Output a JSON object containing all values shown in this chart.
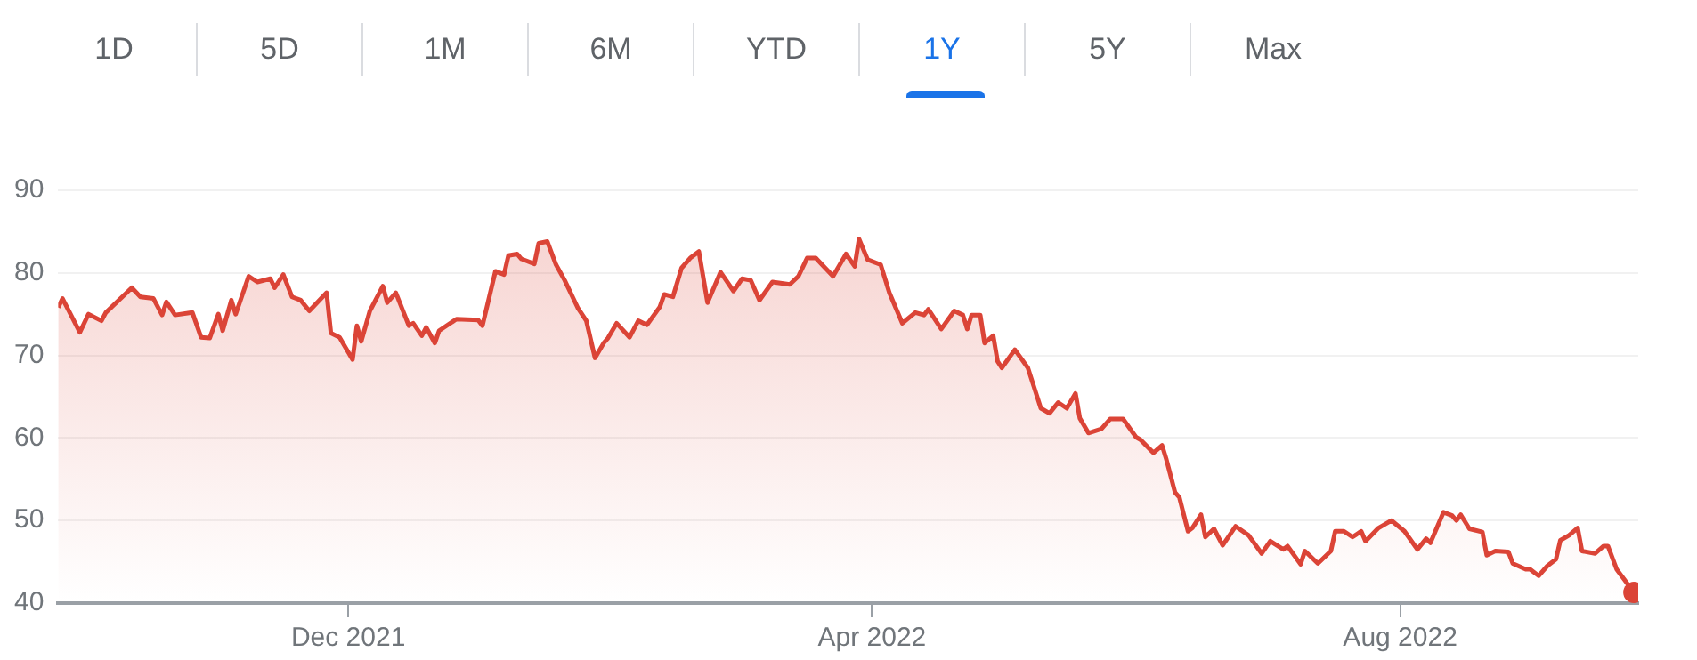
{
  "chart_data": {
    "type": "area",
    "annotations": [
      "1D",
      "5D",
      "1M",
      "6M",
      "YTD",
      "1Y",
      "5Y",
      "Max"
    ],
    "x": [
      "2021-09-25",
      "2021-09-26",
      "2021-09-30",
      "2021-10-02",
      "2021-10-05",
      "2021-10-06",
      "2021-10-12",
      "2021-10-14",
      "2021-10-17",
      "2021-10-19",
      "2021-10-20",
      "2021-10-22",
      "2021-10-26",
      "2021-10-28",
      "2021-10-30",
      "2021-11-01",
      "2021-11-02",
      "2021-11-04",
      "2021-11-05",
      "2021-11-08",
      "2021-11-10",
      "2021-11-13",
      "2021-11-14",
      "2021-11-16",
      "2021-11-18",
      "2021-11-20",
      "2021-11-22",
      "2021-11-26",
      "2021-11-27",
      "2021-11-29",
      "2021-12-02",
      "2021-12-03",
      "2021-12-04",
      "2021-12-06",
      "2021-12-09",
      "2021-12-10",
      "2021-12-12",
      "2021-12-15",
      "2021-12-16",
      "2021-12-18",
      "2021-12-19",
      "2021-12-21",
      "2021-12-22",
      "2021-12-26",
      "2021-12-31",
      "2022-01-01",
      "2022-01-04",
      "2022-01-06",
      "2022-01-07",
      "2022-01-09",
      "2022-01-10",
      "2022-01-13",
      "2022-01-14",
      "2022-01-16",
      "2022-01-18",
      "2022-01-20",
      "2022-01-23",
      "2022-01-25",
      "2022-01-27",
      "2022-01-29",
      "2022-01-30",
      "2022-02-01",
      "2022-02-04",
      "2022-02-06",
      "2022-02-08",
      "2022-02-11",
      "2022-02-12",
      "2022-02-14",
      "2022-02-16",
      "2022-02-18",
      "2022-02-20",
      "2022-02-22",
      "2022-02-25",
      "2022-02-28",
      "2022-03-02",
      "2022-03-04",
      "2022-03-06",
      "2022-03-09",
      "2022-03-13",
      "2022-03-15",
      "2022-03-17",
      "2022-03-19",
      "2022-03-23",
      "2022-03-26",
      "2022-03-28",
      "2022-03-29",
      "2022-03-31",
      "2022-04-03",
      "2022-04-05",
      "2022-04-08",
      "2022-04-11",
      "2022-04-13",
      "2022-04-14",
      "2022-04-17",
      "2022-04-20",
      "2022-04-22",
      "2022-04-23",
      "2022-04-24",
      "2022-04-26",
      "2022-04-27",
      "2022-04-29",
      "2022-04-30",
      "2022-05-01",
      "2022-05-04",
      "2022-05-07",
      "2022-05-10",
      "2022-05-12",
      "2022-05-14",
      "2022-05-16",
      "2022-05-18",
      "2022-05-19",
      "2022-05-21",
      "2022-05-24",
      "2022-05-26",
      "2022-05-29",
      "2022-06-01",
      "2022-06-02",
      "2022-06-05",
      "2022-06-07",
      "2022-06-08",
      "2022-06-10",
      "2022-06-11",
      "2022-06-13",
      "2022-06-14",
      "2022-06-16",
      "2022-06-17",
      "2022-06-19",
      "2022-06-21",
      "2022-06-24",
      "2022-06-27",
      "2022-06-30",
      "2022-07-02",
      "2022-07-05",
      "2022-07-06",
      "2022-07-09",
      "2022-07-10",
      "2022-07-13",
      "2022-07-16",
      "2022-07-17",
      "2022-07-19",
      "2022-07-21",
      "2022-07-23",
      "2022-07-24",
      "2022-07-27",
      "2022-07-30",
      "2022-08-02",
      "2022-08-05",
      "2022-08-07",
      "2022-08-08",
      "2022-08-11",
      "2022-08-13",
      "2022-08-14",
      "2022-08-15",
      "2022-08-17",
      "2022-08-20",
      "2022-08-21",
      "2022-08-23",
      "2022-08-26",
      "2022-08-27",
      "2022-08-30",
      "2022-08-31",
      "2022-09-02",
      "2022-09-04",
      "2022-09-06",
      "2022-09-07",
      "2022-09-09",
      "2022-09-11",
      "2022-09-12",
      "2022-09-15",
      "2022-09-17",
      "2022-09-18",
      "2022-09-20",
      "2022-09-24"
    ],
    "series": [
      {
        "color": "#db4437",
        "values": [
          75.8,
          76.9,
          72.8,
          75.0,
          74.2,
          75.2,
          78.2,
          77.1,
          76.9,
          74.9,
          76.5,
          74.9,
          75.2,
          72.2,
          72.1,
          75.0,
          73.0,
          76.7,
          75.0,
          79.6,
          78.9,
          79.3,
          78.2,
          79.8,
          77.1,
          76.7,
          75.4,
          77.6,
          72.7,
          72.2,
          69.5,
          73.6,
          71.7,
          75.4,
          78.4,
          76.4,
          77.6,
          73.6,
          73.9,
          72.4,
          73.4,
          71.5,
          73.0,
          74.4,
          74.3,
          73.6,
          80.2,
          79.8,
          82.1,
          82.3,
          81.7,
          81.1,
          83.6,
          83.8,
          81.0,
          79.1,
          75.8,
          74.2,
          69.7,
          71.5,
          72.1,
          73.9,
          72.2,
          74.2,
          73.7,
          75.9,
          77.4,
          77.1,
          80.6,
          81.8,
          82.6,
          76.4,
          80.1,
          77.8,
          79.3,
          79.1,
          76.7,
          78.9,
          78.6,
          79.6,
          81.8,
          81.8,
          79.6,
          82.3,
          80.8,
          84.1,
          81.6,
          81.0,
          77.6,
          73.9,
          75.2,
          74.9,
          75.6,
          73.2,
          75.4,
          74.9,
          73.2,
          74.9,
          74.9,
          71.5,
          72.4,
          69.3,
          68.5,
          70.7,
          68.5,
          63.6,
          63.0,
          64.3,
          63.6,
          65.4,
          62.4,
          60.6,
          61.1,
          62.3,
          62.3,
          60.1,
          59.8,
          58.2,
          59.1,
          57.4,
          53.4,
          52.8,
          48.7,
          49.1,
          50.7,
          48.0,
          49.0,
          47.0,
          49.3,
          48.2,
          46.0,
          47.5,
          46.5,
          46.9,
          44.7,
          46.3,
          44.8,
          46.3,
          48.7,
          48.7,
          48.0,
          48.7,
          47.5,
          49.1,
          50.0,
          48.7,
          46.5,
          47.8,
          47.3,
          51.0,
          50.6,
          50.0,
          50.7,
          49.0,
          48.6,
          45.8,
          46.3,
          46.2,
          44.8,
          44.1,
          44.1,
          43.3,
          44.5,
          45.3,
          47.6,
          48.2,
          49.1,
          46.3,
          46.0,
          46.9,
          46.9,
          44.1,
          41.3
        ]
      }
    ],
    "xlim": [
      "2021-09-25",
      "2022-09-25"
    ],
    "xticks": [
      {
        "value": "2021-12-01",
        "label": "Dec 2021"
      },
      {
        "value": "2022-04-01",
        "label": "Apr 2022"
      },
      {
        "value": "2022-08-01",
        "label": "Aug 2022"
      }
    ],
    "ylim": [
      40,
      90
    ],
    "yticks": [
      40,
      50,
      60,
      70,
      80,
      90
    ],
    "grid": "y",
    "marker": "none",
    "legend": false
  }
}
